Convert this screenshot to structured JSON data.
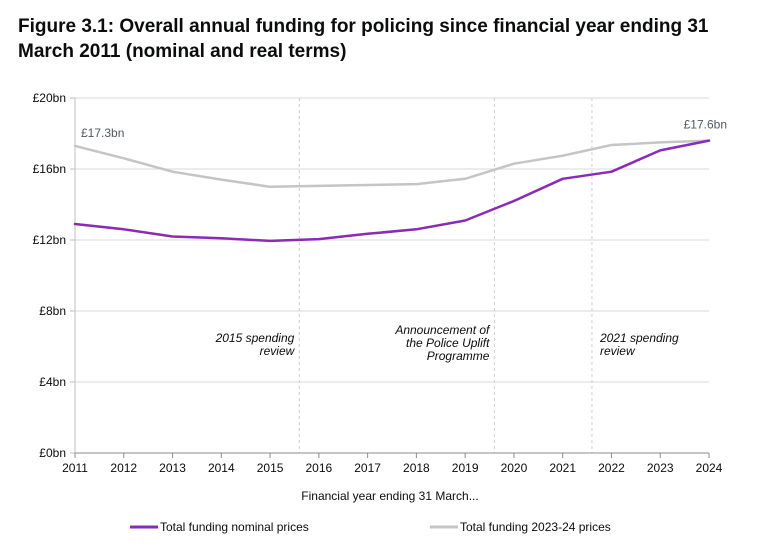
{
  "title": "Figure 3.1: Overall annual funding for policing since financial year ending 31 March 2011 (nominal and real terms)",
  "chart_data": {
    "type": "line",
    "x": [
      2011,
      2012,
      2013,
      2014,
      2015,
      2016,
      2017,
      2018,
      2019,
      2020,
      2021,
      2022,
      2023,
      2024
    ],
    "series": [
      {
        "name": "Total funding nominal prices",
        "color": "#8a2ab7",
        "values": [
          12.9,
          12.6,
          12.2,
          12.1,
          11.95,
          12.05,
          12.35,
          12.6,
          13.1,
          14.2,
          15.45,
          15.85,
          17.05,
          17.6
        ]
      },
      {
        "name": "Total funding 2023-24 prices",
        "color": "#c5c5c7",
        "values": [
          17.3,
          16.6,
          15.85,
          15.4,
          15.0,
          15.05,
          15.1,
          15.15,
          15.45,
          16.3,
          16.75,
          17.35,
          17.5,
          17.6
        ]
      }
    ],
    "ylim": [
      0,
      20
    ],
    "y_ticks": [
      0,
      4,
      8,
      12,
      16,
      20
    ],
    "y_tick_labels": [
      "£0bn",
      "£4bn",
      "£8bn",
      "£12bn",
      "£16bn",
      "£20bn"
    ],
    "xlabel": "Financial year ending 31 March...",
    "ylabel": "",
    "grid": "horizontal",
    "legend_position": "bottom",
    "data_labels": [
      {
        "series": 1,
        "index": 0,
        "text": "£17.3bn"
      },
      {
        "series": 1,
        "index": 13,
        "text": "£17.6bn"
      }
    ],
    "annotations": [
      {
        "x": 2015.6,
        "lines": [
          "2015 spending",
          "review"
        ],
        "side": "left"
      },
      {
        "x": 2019.6,
        "lines": [
          "Announcement of",
          "the Police Uplift",
          "Programme"
        ],
        "side": "left"
      },
      {
        "x": 2021.6,
        "lines": [
          "2021 spending",
          "review"
        ],
        "side": "right"
      }
    ]
  }
}
